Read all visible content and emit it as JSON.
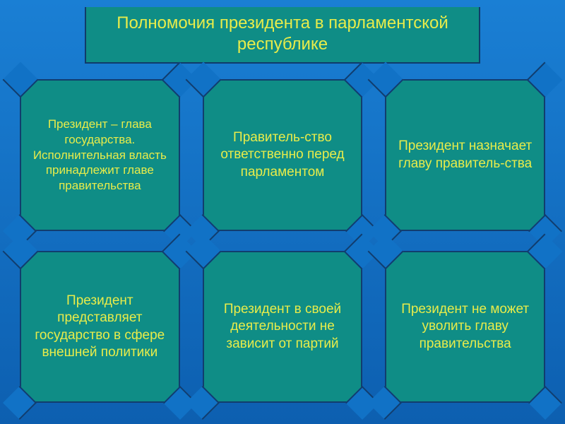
{
  "background": {
    "gradient_from": "#1a7fd4",
    "gradient_to": "#0d5fb0",
    "corner_overlay": "#1172c6"
  },
  "title": {
    "text": "Полномочия президента в парламентской республике",
    "fill": "#0f8d86",
    "border": "#103b6a",
    "color": "#e8ec4a",
    "fontsize": 24
  },
  "card_style": {
    "fill": "#0f8d86",
    "border": "#113d6e",
    "color": "#e8ec4a",
    "fontsize": 19
  },
  "cards": [
    "Президент – глава государства. Исполнительная власть принадлежит главе правительства",
    "Правитель-ство ответственно перед парламентом",
    "Президент назначает главу правитель-ства",
    "Президент представляет государство в сфере внешней политики",
    "Президент в своей деятельности не зависит от партий",
    "Президент не может уволить главу правительства"
  ]
}
